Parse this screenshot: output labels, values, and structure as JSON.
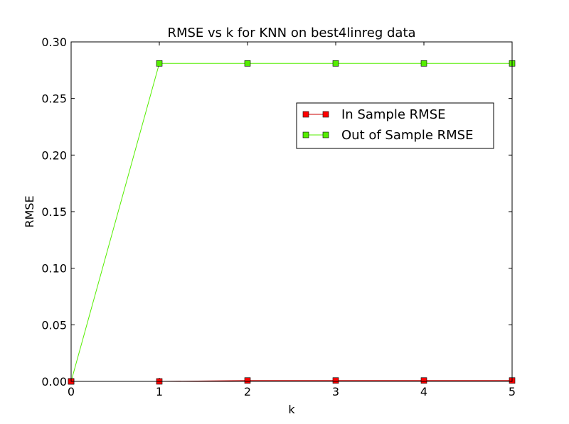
{
  "chart_data": {
    "type": "line",
    "title": "RMSE vs k for KNN on best4linreg data",
    "xlabel": "k",
    "ylabel": "RMSE",
    "xlim": [
      0,
      5
    ],
    "ylim": [
      0,
      0.3
    ],
    "x_ticks": [
      "0",
      "1",
      "2",
      "3",
      "4",
      "5"
    ],
    "y_ticks": [
      "0.00",
      "0.05",
      "0.10",
      "0.15",
      "0.20",
      "0.25",
      "0.30"
    ],
    "x": [
      0,
      1,
      2,
      3,
      4,
      5
    ],
    "series": [
      {
        "name": "In Sample RMSE",
        "values": [
          0.0,
          0.0,
          0.0008,
          0.0008,
          0.0008,
          0.0008
        ],
        "color": "#ff0000",
        "line_color": "#cc0000"
      },
      {
        "name": "Out of Sample RMSE",
        "values": [
          0.0,
          0.281,
          0.281,
          0.281,
          0.281,
          0.281
        ],
        "color": "#55ee00",
        "line_color": "#55ee00"
      }
    ],
    "legend_position": "upper-right",
    "grid": false
  }
}
